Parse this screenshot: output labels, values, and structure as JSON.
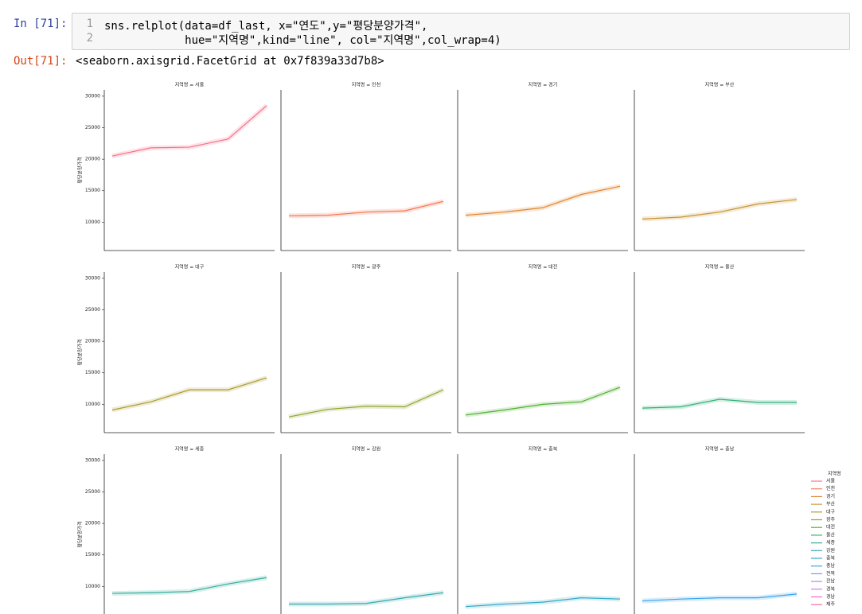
{
  "notebook": {
    "input_prompt": "In [71]:",
    "line_numbers": [
      1,
      2
    ],
    "code_lines": [
      "sns.relplot(data=df_last, x=\"연도\",y=\"평당분양가격\",",
      "            hue=\"지역명\",kind=\"line\", col=\"지역명\",col_wrap=4)"
    ],
    "output_prompt": "Out[71]:",
    "output_text": "<seaborn.axisgrid.FacetGrid at 0x7f839a33d7b8>"
  },
  "legend": {
    "title": "지역명",
    "entries": [
      {
        "name": "서울",
        "color": "#f77189"
      },
      {
        "name": "인천",
        "color": "#f7754f"
      },
      {
        "name": "경기",
        "color": "#e08532"
      },
      {
        "name": "부산",
        "color": "#c69532"
      },
      {
        "name": "대구",
        "color": "#ad9d31"
      },
      {
        "name": "광주",
        "color": "#93a431"
      },
      {
        "name": "대전",
        "color": "#4fb032"
      },
      {
        "name": "울산",
        "color": "#33b07a"
      },
      {
        "name": "세종",
        "color": "#35ad9c"
      },
      {
        "name": "강원",
        "color": "#36abae"
      },
      {
        "name": "충북",
        "color": "#38a8c5"
      },
      {
        "name": "충남",
        "color": "#3ba3ec"
      },
      {
        "name": "전북",
        "color": "#7e97f4"
      },
      {
        "name": "전남",
        "color": "#a48cf4"
      },
      {
        "name": "경북",
        "color": "#cc7af4"
      },
      {
        "name": "경남",
        "color": "#f461dd"
      },
      {
        "name": "제주",
        "color": "#f56cad"
      }
    ]
  },
  "chart_data": [
    {
      "type": "line",
      "title": "지역명 = 서울",
      "ylabel": "평당분양가격",
      "categories": [
        null,
        null,
        null,
        null,
        null
      ],
      "ylim": [
        5500,
        31000
      ],
      "yticks": [
        10000,
        15000,
        20000,
        25000,
        30000
      ],
      "series": [
        {
          "color": "#f77189",
          "values": [
            20500,
            21800,
            21900,
            23200,
            28500
          ]
        }
      ]
    },
    {
      "type": "line",
      "title": "지역명 = 인천",
      "categories": [
        null,
        null,
        null,
        null,
        null
      ],
      "ylim": [
        5500,
        31000
      ],
      "series": [
        {
          "color": "#f7754f",
          "values": [
            11000,
            11100,
            11600,
            11800,
            13300
          ]
        }
      ]
    },
    {
      "type": "line",
      "title": "지역명 = 경기",
      "categories": [
        null,
        null,
        null,
        null,
        null
      ],
      "ylim": [
        5500,
        31000
      ],
      "series": [
        {
          "color": "#e08532",
          "values": [
            11100,
            11600,
            12300,
            14400,
            15700
          ]
        }
      ]
    },
    {
      "type": "line",
      "title": "지역명 = 부산",
      "categories": [
        null,
        null,
        null,
        null,
        null
      ],
      "ylim": [
        5500,
        31000
      ],
      "series": [
        {
          "color": "#c69532",
          "values": [
            10500,
            10800,
            11600,
            12900,
            13600
          ]
        }
      ]
    },
    {
      "type": "line",
      "title": "지역명 = 대구",
      "ylabel": "평당분양가격",
      "categories": [
        null,
        null,
        null,
        null,
        null
      ],
      "ylim": [
        5500,
        31000
      ],
      "yticks": [
        10000,
        15000,
        20000,
        25000,
        30000
      ],
      "series": [
        {
          "color": "#ad9d31",
          "values": [
            9100,
            10400,
            12300,
            12300,
            14200
          ]
        }
      ]
    },
    {
      "type": "line",
      "title": "지역명 = 광주",
      "categories": [
        null,
        null,
        null,
        null,
        null
      ],
      "ylim": [
        5500,
        31000
      ],
      "series": [
        {
          "color": "#93a431",
          "values": [
            8000,
            9200,
            9700,
            9600,
            12300
          ]
        }
      ]
    },
    {
      "type": "line",
      "title": "지역명 = 대전",
      "categories": [
        null,
        null,
        null,
        null,
        null
      ],
      "ylim": [
        5500,
        31000
      ],
      "series": [
        {
          "color": "#4fb032",
          "values": [
            8300,
            9100,
            10000,
            10400,
            12700
          ]
        }
      ]
    },
    {
      "type": "line",
      "title": "지역명 = 울산",
      "categories": [
        null,
        null,
        null,
        null,
        null
      ],
      "ylim": [
        5500,
        31000
      ],
      "series": [
        {
          "color": "#33b07a",
          "values": [
            9400,
            9600,
            10800,
            10300,
            10300
          ]
        }
      ]
    },
    {
      "type": "line",
      "title": "지역명 = 세종",
      "ylabel": "평당분양가격",
      "categories": [
        null,
        null,
        null,
        null,
        null
      ],
      "ylim": [
        5500,
        31000
      ],
      "yticks": [
        10000,
        15000,
        20000,
        25000,
        30000
      ],
      "series": [
        {
          "color": "#35ad9c",
          "values": [
            8900,
            9000,
            9200,
            10400,
            11400
          ]
        }
      ]
    },
    {
      "type": "line",
      "title": "지역명 = 강원",
      "categories": [
        null,
        null,
        null,
        null,
        null
      ],
      "ylim": [
        5500,
        31000
      ],
      "series": [
        {
          "color": "#36abae",
          "values": [
            7200,
            7200,
            7300,
            8200,
            9000
          ]
        }
      ]
    },
    {
      "type": "line",
      "title": "지역명 = 충북",
      "categories": [
        null,
        null,
        null,
        null,
        null
      ],
      "ylim": [
        5500,
        31000
      ],
      "series": [
        {
          "color": "#38a8c5",
          "values": [
            6800,
            7200,
            7500,
            8200,
            8000
          ]
        }
      ]
    },
    {
      "type": "line",
      "title": "지역명 = 충남",
      "categories": [
        null,
        null,
        null,
        null,
        null
      ],
      "ylim": [
        5500,
        31000
      ],
      "series": [
        {
          "color": "#3ba3ec",
          "values": [
            7700,
            8000,
            8200,
            8200,
            8800
          ]
        }
      ]
    }
  ]
}
